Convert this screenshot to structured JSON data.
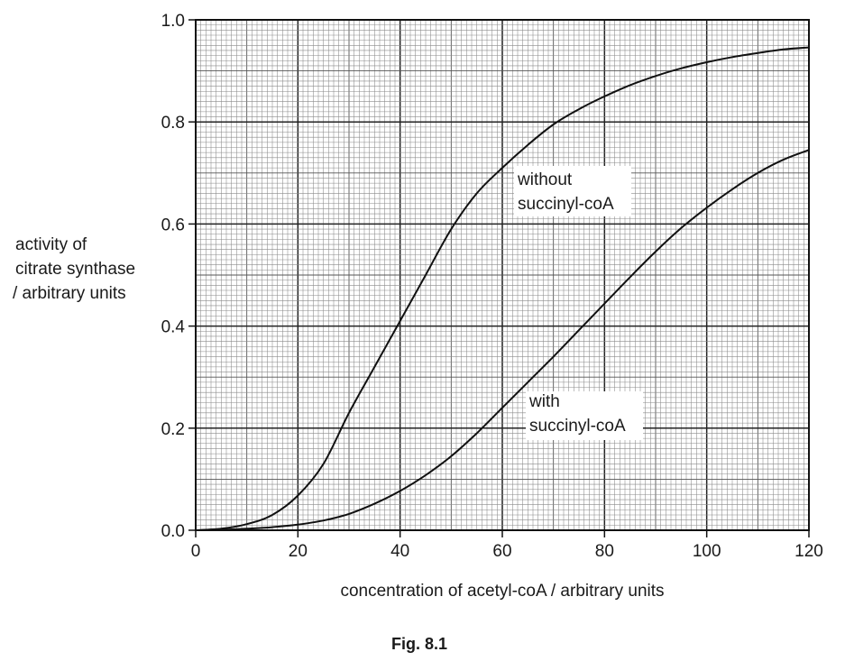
{
  "chart_data": {
    "type": "line",
    "xlabel": "concentration of acetyl-coA / arbitrary units",
    "ylabel": [
      "activity of",
      "citrate synthase",
      "/ arbitrary units"
    ],
    "xlim": [
      0,
      120
    ],
    "ylim": [
      0,
      1.0
    ],
    "x_ticks": [
      0,
      20,
      40,
      60,
      80,
      100,
      120
    ],
    "y_ticks": [
      "0.0",
      "0.2",
      "0.4",
      "0.6",
      "0.8",
      "1.0"
    ],
    "grid": true,
    "caption": "Fig. 8.1",
    "series": [
      {
        "name": "without succinyl-coA",
        "label_lines": [
          "without",
          "succinyl-coA"
        ],
        "x": [
          0,
          5,
          10,
          15,
          20,
          25,
          30,
          35,
          40,
          45,
          50,
          55,
          60,
          65,
          70,
          75,
          80,
          85,
          90,
          95,
          100,
          105,
          110,
          115,
          120
        ],
        "y": [
          0.0,
          0.003,
          0.012,
          0.03,
          0.068,
          0.13,
          0.23,
          0.32,
          0.41,
          0.5,
          0.59,
          0.66,
          0.71,
          0.755,
          0.795,
          0.825,
          0.85,
          0.872,
          0.89,
          0.905,
          0.917,
          0.927,
          0.935,
          0.942,
          0.946
        ]
      },
      {
        "name": "with succinyl-coA",
        "label_lines": [
          "with",
          "succinyl-coA"
        ],
        "x": [
          0,
          5,
          10,
          15,
          20,
          25,
          30,
          35,
          40,
          45,
          50,
          55,
          60,
          65,
          70,
          75,
          80,
          85,
          90,
          95,
          100,
          105,
          110,
          115,
          120
        ],
        "y": [
          0.0,
          0.001,
          0.003,
          0.006,
          0.011,
          0.019,
          0.032,
          0.052,
          0.077,
          0.108,
          0.145,
          0.19,
          0.24,
          0.29,
          0.34,
          0.392,
          0.444,
          0.496,
          0.546,
          0.592,
          0.632,
          0.668,
          0.7,
          0.726,
          0.745
        ]
      }
    ]
  }
}
